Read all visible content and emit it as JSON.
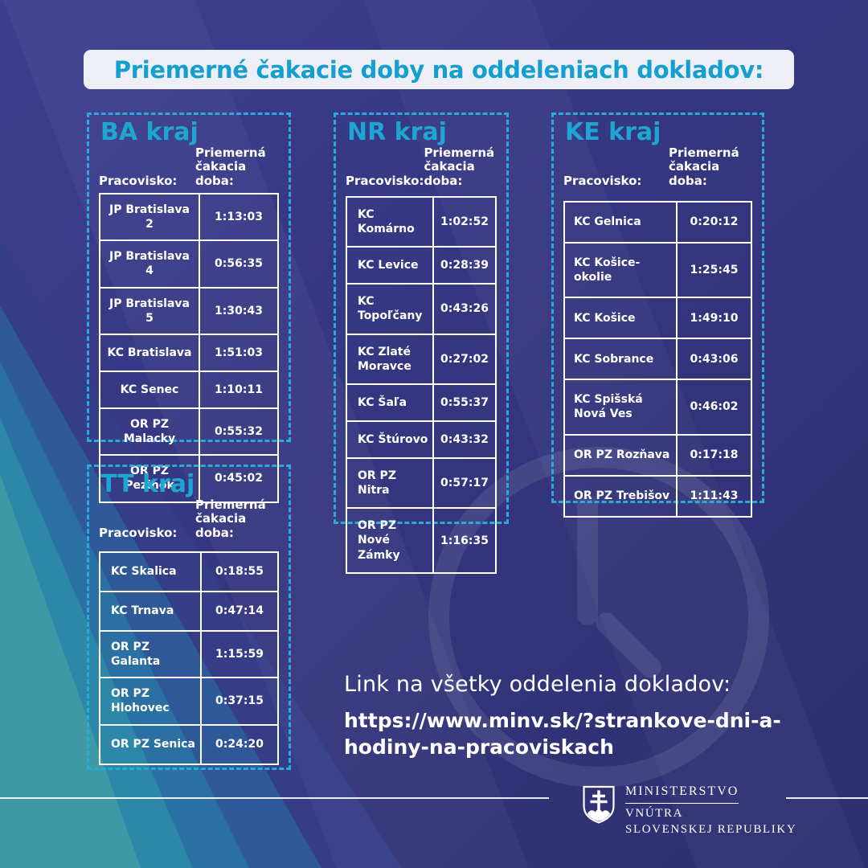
{
  "title": "Priemerné čakacie doby na oddeleniach dokladov:",
  "regions": [
    {
      "code": "BA",
      "name": "BA kraj",
      "header_left": "Pracovisko:",
      "header_right": "Priemerná čakacia doba:",
      "rows": [
        {
          "office": "JP Bratislava 2",
          "time": "1:13:03"
        },
        {
          "office": "JP Bratislava 4",
          "time": "0:56:35"
        },
        {
          "office": "JP Bratislava 5",
          "time": "1:30:43"
        },
        {
          "office": "KC Bratislava",
          "time": "1:51:03"
        },
        {
          "office": "KC Senec",
          "time": "1:10:11"
        },
        {
          "office": "OR PZ Malacky",
          "time": "0:55:32"
        },
        {
          "office": "OR PZ Pezinok",
          "time": "0:45:02"
        }
      ]
    },
    {
      "code": "NR",
      "name": "NR kraj",
      "header_left": "Pracovisko:",
      "header_right": "Priemerná čakacia doba:",
      "rows": [
        {
          "office": "KC Komárno",
          "time": "1:02:52"
        },
        {
          "office": "KC Levice",
          "time": "0:28:39"
        },
        {
          "office": "KC Topoľčany",
          "time": "0:43:26"
        },
        {
          "office": "KC Zlaté Moravce",
          "time": "0:27:02"
        },
        {
          "office": "KC Šaľa",
          "time": "0:55:37"
        },
        {
          "office": "KC Štúrovo",
          "time": "0:43:32"
        },
        {
          "office": "OR PZ Nitra",
          "time": "0:57:17"
        },
        {
          "office": "OR PZ Nové Zámky",
          "time": "1:16:35"
        }
      ]
    },
    {
      "code": "KE",
      "name": "KE kraj",
      "header_left": "Pracovisko:",
      "header_right": "Priemerná čakacia doba:",
      "rows": [
        {
          "office": "KC Gelnica",
          "time": "0:20:12"
        },
        {
          "office": "KC Košice-okolie",
          "time": "1:25:45"
        },
        {
          "office": "KC Košice",
          "time": "1:49:10"
        },
        {
          "office": "KC Sobrance",
          "time": "0:43:06"
        },
        {
          "office": "KC Spišská Nová Ves",
          "time": "0:46:02"
        },
        {
          "office": "OR PZ Rozňava",
          "time": "0:17:18"
        },
        {
          "office": "OR PZ Trebišov",
          "time": "1:11:43"
        }
      ]
    },
    {
      "code": "TT",
      "name": "TT kraj",
      "header_left": "Pracovisko:",
      "header_right": "Priemerná čakacia doba:",
      "rows": [
        {
          "office": "KC Skalica",
          "time": "0:18:55"
        },
        {
          "office": "KC Trnava",
          "time": "0:47:14"
        },
        {
          "office": "OR PZ Galanta",
          "time": "1:15:59"
        },
        {
          "office": "OR PZ Hlohovec",
          "time": "0:37:15"
        },
        {
          "office": "OR PZ Senica",
          "time": "0:24:20"
        }
      ]
    }
  ],
  "link": {
    "label": "Link na všetky oddelenia dokladov:",
    "url_lines": [
      "https://www.minv.sk/?strankove-dni-a-",
      "hodiny-na-pracoviskach"
    ]
  },
  "footer": {
    "ministry": [
      "MINISTERSTVO",
      "VNÚTRA",
      "SLOVENSKEJ REPUBLIKY"
    ]
  },
  "icons": {
    "watermark": "clock-icon",
    "logo": "slovak-coat-of-arms"
  },
  "colors": {
    "background_top": "#3d3e90",
    "background_bottom": "#2d2f6f",
    "accent_cyan": "#1ea6d2",
    "title_text_cyan": "#149fce",
    "dashed_border": "#2aa9da",
    "title_bar_bg": "#edeef6",
    "text_white": "#ffffff",
    "stripe_teal": "#3d9aa4",
    "watermark_white": "rgba(255,255,255,0.09)"
  }
}
